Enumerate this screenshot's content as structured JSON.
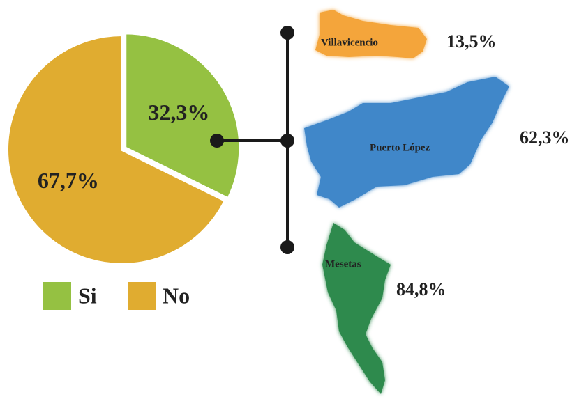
{
  "chart_data": {
    "type": "pie",
    "categories": [
      "Si",
      "No"
    ],
    "values": [
      32.3,
      67.7
    ],
    "value_labels": [
      "32,3%",
      "67,7%"
    ],
    "colors": [
      "#95c142",
      "#e0ac30"
    ]
  },
  "regions": [
    {
      "name": "Villavicencio",
      "label": "13,5%"
    },
    {
      "name": "Puerto López",
      "label": "62,3%"
    },
    {
      "name": "Mesetas",
      "label": "84,8%"
    }
  ]
}
